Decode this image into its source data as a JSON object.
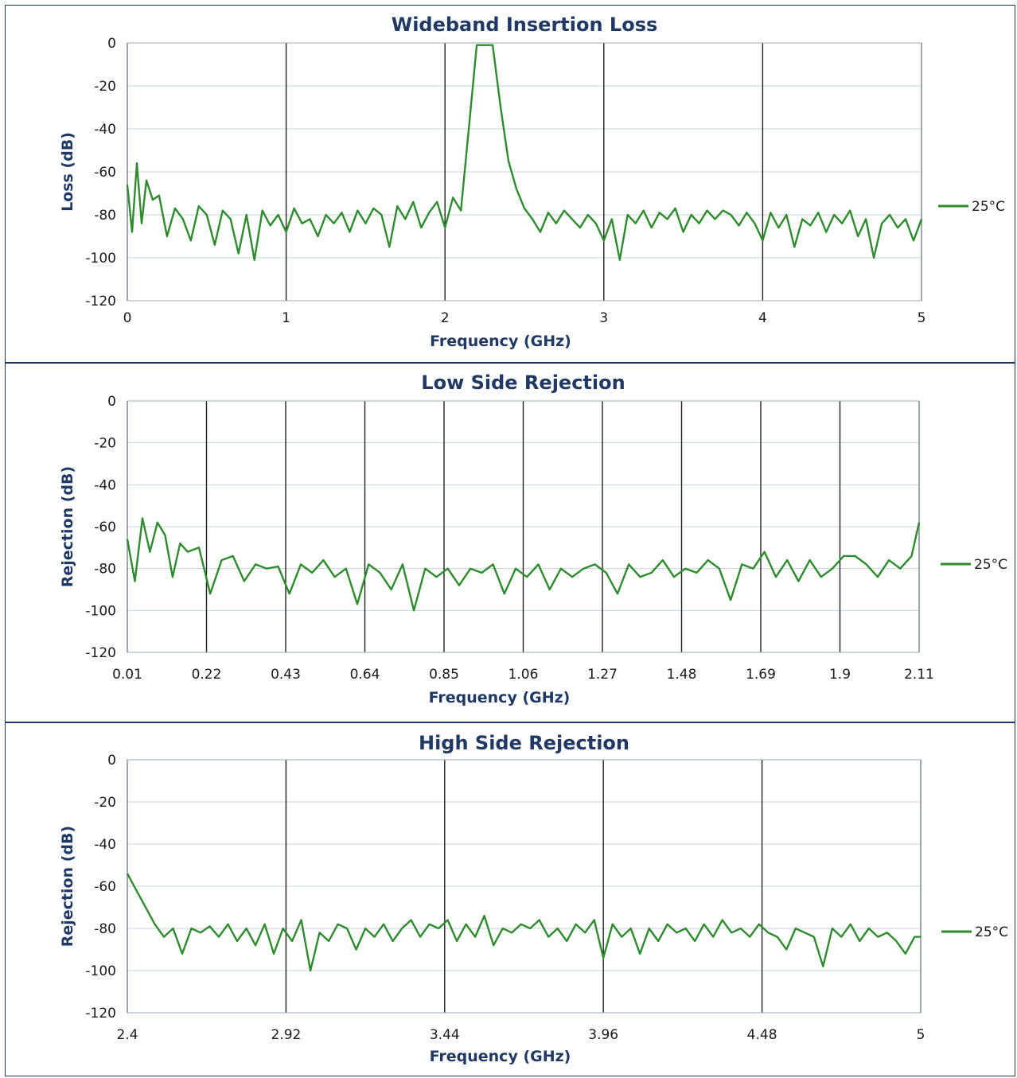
{
  "chart_data": [
    {
      "type": "line",
      "title": "Wideband Insertion Loss",
      "xlabel": "Frequency (GHz)",
      "ylabel": "Loss (dB)",
      "xlim": [
        0,
        5
      ],
      "ylim": [
        -120,
        0
      ],
      "x_ticks": [
        "0",
        "1",
        "2",
        "3",
        "4",
        "5"
      ],
      "y_ticks": [
        "0",
        "-20",
        "-40",
        "-60",
        "-80",
        "-100",
        "-120"
      ],
      "grid": "vertical major lines at x ticks, horizontal lines at y ticks",
      "legend_position": "right",
      "series": [
        {
          "name": "25°C",
          "color": "#2e8b2e",
          "x": [
            0.0,
            0.03,
            0.06,
            0.09,
            0.12,
            0.16,
            0.2,
            0.25,
            0.3,
            0.35,
            0.4,
            0.45,
            0.5,
            0.55,
            0.6,
            0.65,
            0.7,
            0.75,
            0.8,
            0.85,
            0.9,
            0.95,
            1.0,
            1.05,
            1.1,
            1.15,
            1.2,
            1.25,
            1.3,
            1.35,
            1.4,
            1.45,
            1.5,
            1.55,
            1.6,
            1.65,
            1.7,
            1.75,
            1.8,
            1.85,
            1.9,
            1.95,
            2.0,
            2.05,
            2.1,
            2.15,
            2.2,
            2.25,
            2.3,
            2.35,
            2.4,
            2.45,
            2.5,
            2.55,
            2.6,
            2.65,
            2.7,
            2.75,
            2.8,
            2.85,
            2.9,
            2.95,
            3.0,
            3.05,
            3.1,
            3.15,
            3.2,
            3.25,
            3.3,
            3.35,
            3.4,
            3.45,
            3.5,
            3.55,
            3.6,
            3.65,
            3.7,
            3.75,
            3.8,
            3.85,
            3.9,
            3.95,
            4.0,
            4.05,
            4.1,
            4.15,
            4.2,
            4.25,
            4.3,
            4.35,
            4.4,
            4.45,
            4.5,
            4.55,
            4.6,
            4.65,
            4.7,
            4.75,
            4.8,
            4.85,
            4.9,
            4.95,
            5.0
          ],
          "y": [
            -66,
            -88,
            -56,
            -84,
            -64,
            -73,
            -71,
            -90,
            -77,
            -82,
            -92,
            -76,
            -80,
            -94,
            -78,
            -82,
            -98,
            -80,
            -101,
            -78,
            -85,
            -80,
            -88,
            -77,
            -84,
            -82,
            -90,
            -80,
            -84,
            -79,
            -88,
            -78,
            -84,
            -77,
            -80,
            -95,
            -76,
            -82,
            -74,
            -86,
            -79,
            -74,
            -86,
            -72,
            -78,
            -40,
            -1,
            -1,
            -1,
            -30,
            -55,
            -68,
            -77,
            -82,
            -88,
            -79,
            -84,
            -78,
            -82,
            -86,
            -80,
            -84,
            -92,
            -82,
            -101,
            -80,
            -84,
            -78,
            -86,
            -79,
            -82,
            -77,
            -88,
            -80,
            -84,
            -78,
            -82,
            -78,
            -80,
            -85,
            -79,
            -84,
            -92,
            -79,
            -86,
            -80,
            -95,
            -82,
            -85,
            -79,
            -88,
            -80,
            -84,
            -78,
            -90,
            -82,
            -100,
            -84,
            -80,
            -86,
            -82,
            -92,
            -82
          ]
        }
      ]
    },
    {
      "type": "line",
      "title": "Low Side Rejection",
      "xlabel": "Frequency (GHz)",
      "ylabel": "Rejection (dB)",
      "xlim": [
        0.01,
        2.11
      ],
      "ylim": [
        -120,
        0
      ],
      "x_ticks": [
        "0.01",
        "0.22",
        "0.43",
        "0.64",
        "0.85",
        "1.06",
        "1.27",
        "1.48",
        "1.69",
        "1.9",
        "2.11"
      ],
      "y_ticks": [
        "0",
        "-20",
        "-40",
        "-60",
        "-80",
        "-100",
        "-120"
      ],
      "grid": "vertical major lines at x ticks, horizontal lines at y ticks",
      "legend_position": "right",
      "series": [
        {
          "name": "25°C",
          "color": "#2e8b2e",
          "x": [
            0.01,
            0.03,
            0.05,
            0.07,
            0.09,
            0.11,
            0.13,
            0.15,
            0.17,
            0.2,
            0.23,
            0.26,
            0.29,
            0.32,
            0.35,
            0.38,
            0.41,
            0.44,
            0.47,
            0.5,
            0.53,
            0.56,
            0.59,
            0.62,
            0.65,
            0.68,
            0.71,
            0.74,
            0.77,
            0.8,
            0.83,
            0.86,
            0.89,
            0.92,
            0.95,
            0.98,
            1.01,
            1.04,
            1.07,
            1.1,
            1.13,
            1.16,
            1.19,
            1.22,
            1.25,
            1.28,
            1.31,
            1.34,
            1.37,
            1.4,
            1.43,
            1.46,
            1.49,
            1.52,
            1.55,
            1.58,
            1.61,
            1.64,
            1.67,
            1.7,
            1.73,
            1.76,
            1.79,
            1.82,
            1.85,
            1.88,
            1.91,
            1.94,
            1.97,
            2.0,
            2.03,
            2.06,
            2.09,
            2.11
          ],
          "y": [
            -66,
            -86,
            -56,
            -72,
            -58,
            -64,
            -84,
            -68,
            -72,
            -70,
            -92,
            -76,
            -74,
            -86,
            -78,
            -80,
            -79,
            -92,
            -78,
            -82,
            -76,
            -84,
            -80,
            -97,
            -78,
            -82,
            -90,
            -78,
            -100,
            -80,
            -84,
            -80,
            -88,
            -80,
            -82,
            -78,
            -92,
            -80,
            -84,
            -78,
            -90,
            -80,
            -84,
            -80,
            -78,
            -82,
            -92,
            -78,
            -84,
            -82,
            -76,
            -84,
            -80,
            -82,
            -76,
            -80,
            -95,
            -78,
            -80,
            -72,
            -84,
            -76,
            -86,
            -76,
            -84,
            -80,
            -74,
            -74,
            -78,
            -84,
            -76,
            -80,
            -74,
            -58
          ]
        }
      ]
    },
    {
      "type": "line",
      "title": "High Side Rejection",
      "xlabel": "Frequency (GHz)",
      "ylabel": "Rejection (dB)",
      "xlim": [
        2.4,
        5
      ],
      "ylim": [
        -120,
        0
      ],
      "x_ticks": [
        "2.4",
        "2.92",
        "3.44",
        "3.96",
        "4.48",
        "5"
      ],
      "y_ticks": [
        "0",
        "-20",
        "-40",
        "-60",
        "-80",
        "-100",
        "-120"
      ],
      "grid": "vertical major lines at x ticks, horizontal lines at y ticks",
      "legend_position": "right",
      "series": [
        {
          "name": "25°C",
          "color": "#2e8b2e",
          "x": [
            2.4,
            2.43,
            2.46,
            2.49,
            2.52,
            2.55,
            2.58,
            2.61,
            2.64,
            2.67,
            2.7,
            2.73,
            2.76,
            2.79,
            2.82,
            2.85,
            2.88,
            2.91,
            2.94,
            2.97,
            3.0,
            3.03,
            3.06,
            3.09,
            3.12,
            3.15,
            3.18,
            3.21,
            3.24,
            3.27,
            3.3,
            3.33,
            3.36,
            3.39,
            3.42,
            3.45,
            3.48,
            3.51,
            3.54,
            3.57,
            3.6,
            3.63,
            3.66,
            3.69,
            3.72,
            3.75,
            3.78,
            3.81,
            3.84,
            3.87,
            3.9,
            3.93,
            3.96,
            3.99,
            4.02,
            4.05,
            4.08,
            4.11,
            4.14,
            4.17,
            4.2,
            4.23,
            4.26,
            4.29,
            4.32,
            4.35,
            4.38,
            4.41,
            4.44,
            4.47,
            4.5,
            4.53,
            4.56,
            4.59,
            4.62,
            4.65,
            4.68,
            4.71,
            4.74,
            4.77,
            4.8,
            4.83,
            4.86,
            4.89,
            4.92,
            4.95,
            4.98,
            5.0
          ],
          "y": [
            -54,
            -62,
            -70,
            -78,
            -84,
            -80,
            -92,
            -80,
            -82,
            -79,
            -84,
            -78,
            -86,
            -80,
            -88,
            -78,
            -92,
            -80,
            -86,
            -76,
            -100,
            -82,
            -86,
            -78,
            -80,
            -90,
            -80,
            -84,
            -78,
            -86,
            -80,
            -76,
            -84,
            -78,
            -80,
            -76,
            -86,
            -78,
            -84,
            -74,
            -88,
            -80,
            -82,
            -78,
            -80,
            -76,
            -84,
            -80,
            -86,
            -78,
            -82,
            -76,
            -94,
            -78,
            -84,
            -80,
            -92,
            -80,
            -86,
            -78,
            -82,
            -80,
            -86,
            -78,
            -84,
            -76,
            -82,
            -80,
            -84,
            -78,
            -82,
            -84,
            -90,
            -80,
            -82,
            -84,
            -98,
            -80,
            -84,
            -78,
            -86,
            -80,
            -84,
            -82,
            -86,
            -92,
            -84,
            -84
          ]
        }
      ]
    }
  ]
}
